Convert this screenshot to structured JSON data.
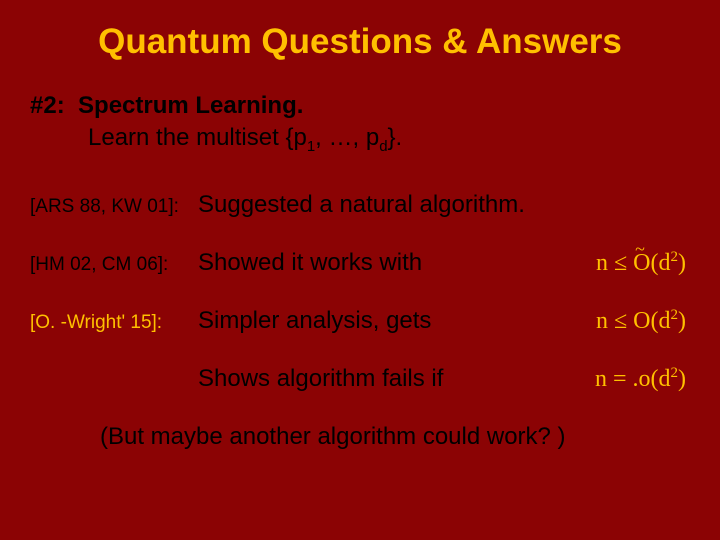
{
  "background_color": "#8b0304",
  "accent_color": "#ffc000",
  "text_color": "#000000",
  "title": "Quantum Questions & Answers",
  "title_fontsize": 35,
  "heading_prefix": "#2:",
  "heading_text": "Spectrum Learning.",
  "sub_text_prefix": "Learn the multiset {p",
  "sub_text_mid": ", …, p",
  "sub_text_suffix": "}.",
  "sub_index1": "1",
  "sub_index2": "d",
  "body_fontsize": 24,
  "citation_fontsize": 19,
  "rows": [
    {
      "citation": "[ARS 88, KW 01]:",
      "highlight": false,
      "desc": "Suggested a natural algorithm.",
      "formula_text": "",
      "formula_op": "",
      "formula_big_o": "",
      "formula_tilde": false
    },
    {
      "citation": "[HM 02, CM 06]:",
      "highlight": false,
      "desc": "Showed it works with",
      "formula_text": "n ≤ ",
      "formula_big_o": "O",
      "formula_tail": "(d",
      "formula_exp": "2",
      "formula_close": ")",
      "formula_tilde": true
    },
    {
      "citation": "[O. -Wright' 15]:",
      "highlight": true,
      "desc": "Simpler analysis, gets",
      "formula_text": "n ≤ ",
      "formula_big_o": "O",
      "formula_tail": "(d",
      "formula_exp": "2",
      "formula_close": ")",
      "formula_tilde": false
    },
    {
      "citation": "",
      "highlight": false,
      "desc": "Shows algorithm fails if",
      "formula_text": "n = ",
      "formula_big_o": "o",
      "formula_tail": "(d",
      "formula_exp": "2",
      "formula_close": ")",
      "formula_tilde": false,
      "formula_dot": "."
    }
  ],
  "closing": "(But maybe another algorithm could work? )"
}
